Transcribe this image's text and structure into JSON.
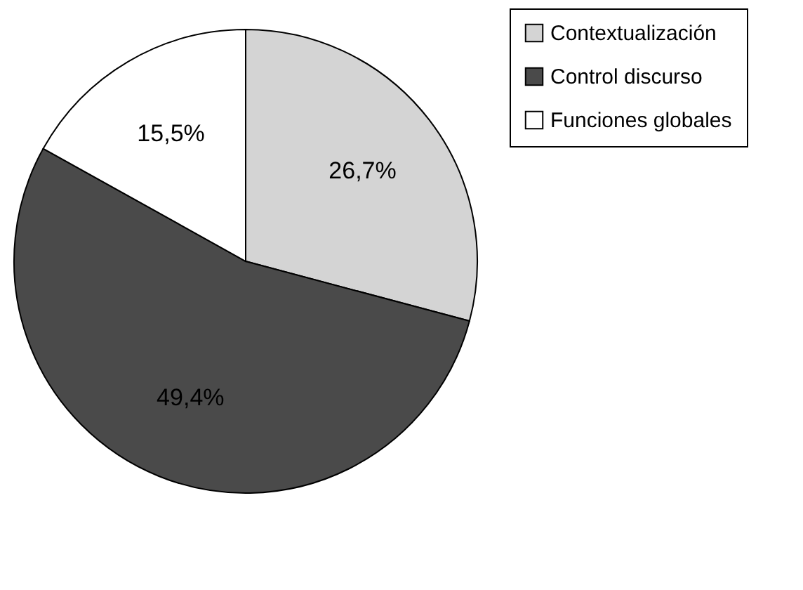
{
  "chart_data": {
    "type": "pie",
    "categories": [
      "Contextualización",
      "Control discurso",
      "Funciones globales"
    ],
    "values": [
      26.7,
      49.4,
      15.5
    ],
    "colors": [
      "#d4d4d4",
      "#4a4a4a",
      "#ffffff"
    ],
    "value_labels": [
      "26,7%",
      "49,4%",
      "15,5%"
    ],
    "legend": "right"
  }
}
